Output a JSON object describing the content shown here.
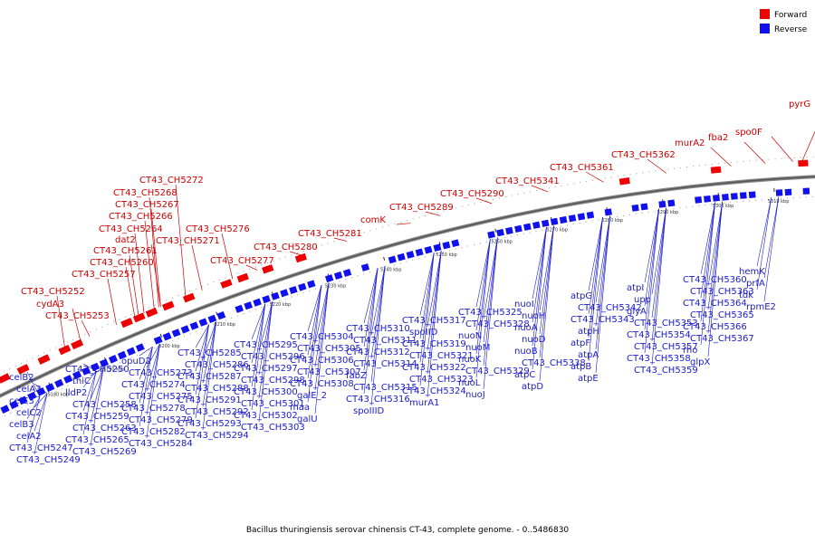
{
  "legend": {
    "forward_label": "Forward",
    "reverse_label": "Reverse",
    "forward_color": "#ee0000",
    "reverse_color": "#1111ee"
  },
  "caption": "Bacillus thuringiensis serovar chinensis CT-43, complete genome. - 0..5486830",
  "scale_labels": [
    "5180 kbp",
    "5190 kbp",
    "5200 kbp",
    "5210 kbp",
    "5220 kbp",
    "5230 kbp",
    "5240 kbp",
    "5250 kbp",
    "5260 kbp",
    "5270 kbp",
    "5280 kbp",
    "5290 kbp",
    "5300 kbp",
    "5310 kbp"
  ],
  "forward_labels": [
    "CT43_CH5272",
    "CT43_CH5268",
    "CT43_CH5267",
    "CT43_CH5266",
    "CT43_CH5264",
    "dat2",
    "CT43_CH5261",
    "CT43_CH5260",
    "CT43_CH5257",
    "CT43_CH5252",
    "cydA3",
    "CT43_CH5253",
    "CT43_CH5276",
    "CT43_CH5271",
    "CT43_CH5277",
    "CT43_CH5280",
    "CT43_CH5281",
    "comK",
    "CT43_CH5289",
    "CT43_CH5290",
    "CT43_CH5341",
    "CT43_CH5361",
    "CT43_CH5362",
    "murA2",
    "fba2",
    "spo0F",
    "pyrG"
  ],
  "reverse_labels": [
    "celB2",
    "celA3",
    "celC3",
    "celC2",
    "celB3",
    "celA2",
    "CT43_CH5247",
    "CT43_CH5249",
    "CT43_CH5250",
    "thiC",
    "lldP2",
    "CT43_CH5258",
    "CT43_CH5259",
    "CT43_CH5263",
    "CT43_CH5265",
    "CT43_CH5269",
    "opuD2",
    "CT43_CH5273",
    "CT43_CH5274",
    "CT43_CH5275",
    "CT43_CH5278",
    "CT43_CH5279",
    "CT43_CH5282",
    "CT43_CH5284",
    "CT43_CH5285",
    "CT43_CH5286",
    "CT43_CH5287",
    "CT43_CH5288",
    "CT43_CH5291",
    "CT43_CH5292",
    "CT43_CH5293",
    "CT43_CH5294",
    "CT43_CH5295",
    "CT43_CH5296",
    "CT43_CH5297",
    "CT43_CH5298",
    "CT43_CH5300",
    "CT43_CH5301",
    "CT43_CH5302",
    "CT43_CH5303",
    "CT43_CH5304",
    "CT43_CH5305",
    "CT43_CH5306",
    "CT43_CH5307",
    "CT43_CH5308",
    "galE_2",
    "maa",
    "galU",
    "CT43_CH5310",
    "CT43_CH5311",
    "CT43_CH5312",
    "CT43_CH5314",
    "fabZ",
    "CT43_CH5315",
    "CT43_CH5316",
    "spoIIID",
    "CT43_CH5317",
    "spoIID",
    "CT43_CH5319",
    "CT43_CH5321",
    "CT43_CH5322",
    "CT43_CH5323",
    "CT43_CH5324",
    "murA1",
    "CT43_CH5325",
    "CT43_CH5328",
    "nuoN",
    "nuoM",
    "nuoK",
    "CT43_CH5329",
    "nuoL",
    "nuoJ",
    "nuoI",
    "nuoH",
    "nuoA",
    "nuoD",
    "nuoB",
    "CT43_CH5338",
    "atpC",
    "atpD",
    "atpG",
    "CT43_CH5342",
    "CT43_CH5343",
    "atpH",
    "atpF",
    "atpA",
    "atpB",
    "atpE",
    "atpI",
    "upp",
    "glyA",
    "CT43_CH5353",
    "CT43_CH5354",
    "CT43_CH5357",
    "CT43_CH5358",
    "CT43_CH5359",
    "CT43_CH5360",
    "CT43_CH5363",
    "CT43_CH5364",
    "CT43_CH5365",
    "CT43_CH5366",
    "CT43_CH5367",
    "rho",
    "glpX",
    "hemK",
    "prfA",
    "tdk",
    "rpmE2"
  ]
}
